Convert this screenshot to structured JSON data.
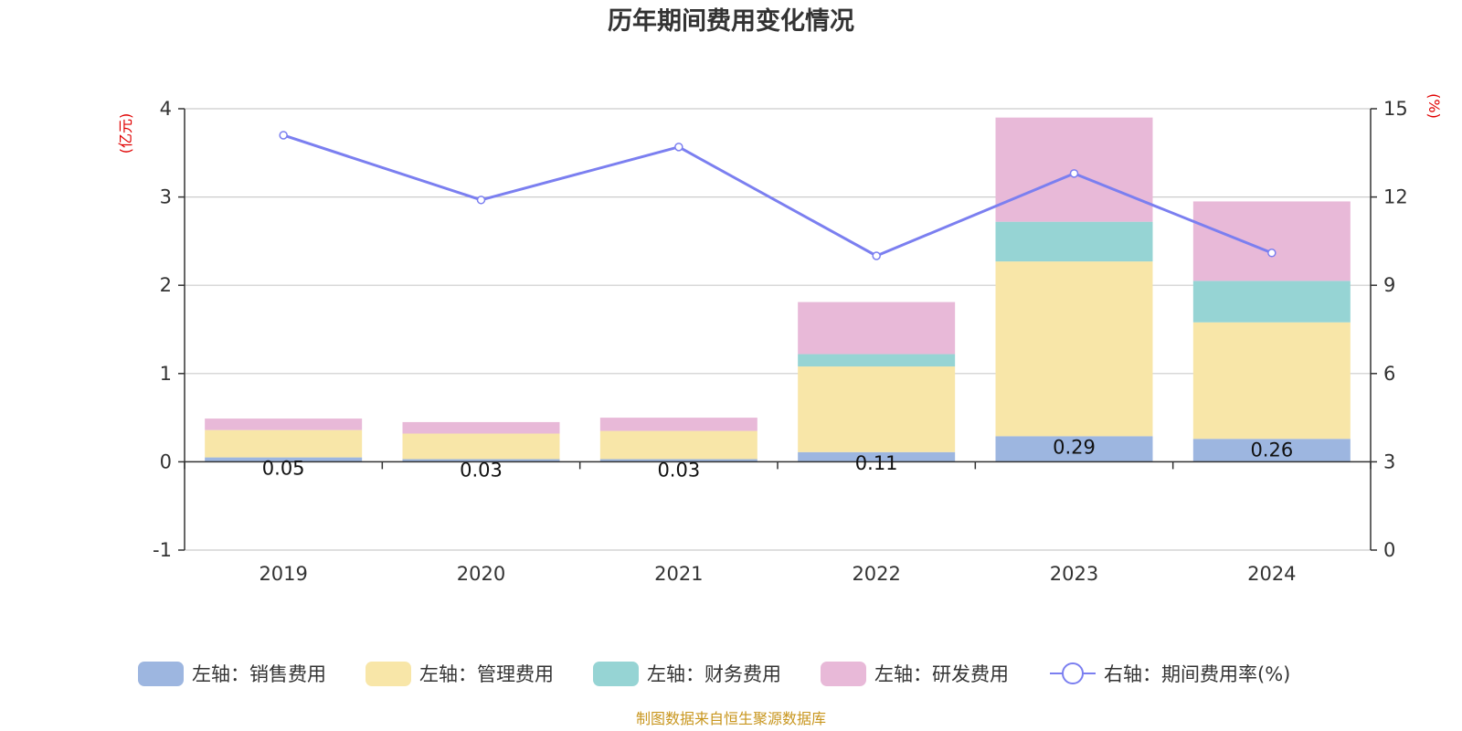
{
  "chart_data": {
    "type": "bar",
    "title": "历年期间费用变化情况",
    "categories": [
      "2019",
      "2020",
      "2021",
      "2022",
      "2023",
      "2024"
    ],
    "left_axis": {
      "unit": "(亿元)",
      "ylim": [
        -1,
        4
      ],
      "ticks": [
        -1,
        0,
        1,
        2,
        3,
        4
      ]
    },
    "right_axis": {
      "unit": "(%)",
      "ylim": [
        0,
        15
      ],
      "ticks": [
        0,
        3,
        6,
        9,
        12,
        15
      ]
    },
    "grid": true,
    "stacked": true,
    "series": [
      {
        "name": "左轴：销售费用",
        "kind": "bar",
        "axis": "left",
        "color": "#9db6e0",
        "values": [
          0.05,
          0.03,
          0.03,
          0.11,
          0.29,
          0.26
        ],
        "labels": [
          "0.05",
          "0.03",
          "0.03",
          "0.11",
          "0.29",
          "0.26"
        ]
      },
      {
        "name": "左轴：管理费用",
        "kind": "bar",
        "axis": "left",
        "color": "#f8e6a8",
        "values": [
          0.31,
          0.29,
          0.32,
          0.97,
          1.98,
          1.32
        ]
      },
      {
        "name": "左轴：财务费用",
        "kind": "bar",
        "axis": "left",
        "color": "#96d4d4",
        "values": [
          0.0,
          0.0,
          0.0,
          0.14,
          0.45,
          0.47
        ]
      },
      {
        "name": "左轴：研发费用",
        "kind": "bar",
        "axis": "left",
        "color": "#e8b9d8",
        "values": [
          0.13,
          0.13,
          0.15,
          0.59,
          1.18,
          0.9
        ]
      },
      {
        "name": "右轴：期间费用率(%)",
        "kind": "line",
        "axis": "right",
        "color": "#7b7ff0",
        "values": [
          14.1,
          11.9,
          13.7,
          10.0,
          12.8,
          10.1
        ]
      }
    ],
    "legend_position": "bottom"
  },
  "source_note": "制图数据来自恒生聚源数据库"
}
